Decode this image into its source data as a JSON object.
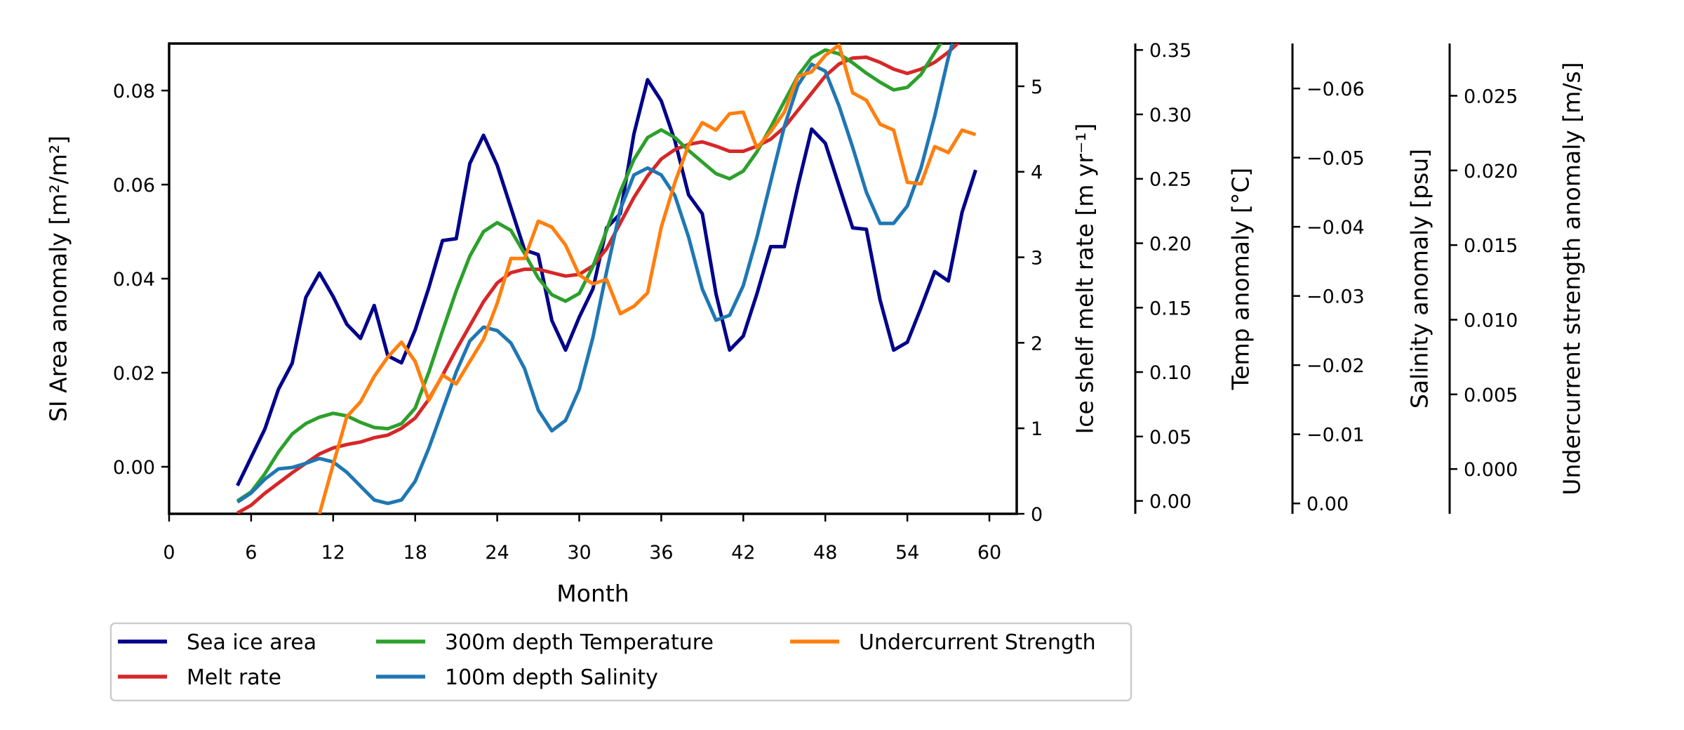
{
  "chart_data": {
    "type": "line",
    "title": "",
    "xlabel": "Month",
    "xlim": [
      0,
      62
    ],
    "xticks": [
      0,
      6,
      12,
      18,
      24,
      30,
      36,
      42,
      48,
      54,
      60
    ],
    "legend_position": "below",
    "axes": [
      {
        "id": "si",
        "side": "left",
        "label": "SI Area anomaly [m²/m²]",
        "lim": [
          -0.01,
          0.09
        ],
        "ticks": [
          0.0,
          0.02,
          0.04,
          0.06,
          0.08
        ],
        "tick_labels": [
          "0.00",
          "0.02",
          "0.04",
          "0.06",
          "0.08"
        ]
      },
      {
        "id": "melt",
        "side": "right",
        "label": "Ice shelf melt rate [m yr⁻¹]",
        "lim": [
          0,
          5.5
        ],
        "ticks": [
          0,
          1,
          2,
          3,
          4,
          5
        ],
        "tick_labels": [
          "0",
          "1",
          "2",
          "3",
          "4",
          "5"
        ]
      },
      {
        "id": "temp",
        "side": "right",
        "label": "Temp anomaly [°C]",
        "lim": [
          -0.01,
          0.355
        ],
        "ticks": [
          0.0,
          0.05,
          0.1,
          0.15,
          0.2,
          0.25,
          0.3,
          0.35
        ],
        "tick_labels": [
          "0.00",
          "0.05",
          "0.10",
          "0.15",
          "0.20",
          "0.25",
          "0.30",
          "0.35"
        ]
      },
      {
        "id": "sal",
        "side": "right",
        "label": "Salinity anomaly [psu]",
        "inverted": true,
        "lim": [
          0.0015,
          -0.0665
        ],
        "ticks": [
          0.0,
          -0.01,
          -0.02,
          -0.03,
          -0.04,
          -0.05,
          -0.06
        ],
        "tick_labels": [
          "0.00",
          "−0.01",
          "−0.02",
          "−0.03",
          "−0.04",
          "−0.05",
          "−0.06"
        ]
      },
      {
        "id": "uc",
        "side": "right",
        "label": "Undercurrent strength anomaly [m/s]",
        "lim": [
          -0.003,
          0.0285
        ],
        "ticks": [
          0.0,
          0.005,
          0.01,
          0.015,
          0.02,
          0.025
        ],
        "tick_labels": [
          "0.000",
          "0.005",
          "0.010",
          "0.015",
          "0.020",
          "0.025"
        ]
      }
    ],
    "series": [
      {
        "name": "Sea ice area",
        "axis": "si",
        "color": "#00008b",
        "x": [
          5,
          6,
          7,
          8,
          9,
          10,
          11,
          12,
          13,
          14,
          15,
          16,
          17,
          18,
          19,
          20,
          21,
          22,
          23,
          24,
          25,
          26,
          27,
          28,
          29,
          30,
          31,
          32,
          33,
          34,
          35,
          36,
          37,
          38,
          39,
          40,
          41,
          42,
          43,
          44,
          45,
          46,
          47,
          48,
          49,
          50,
          51,
          52,
          53,
          54,
          55,
          56,
          57,
          58,
          59
        ],
        "values": [
          -0.004,
          0.002,
          0.008,
          0.0165,
          0.022,
          0.036,
          0.0412,
          0.0362,
          0.0303,
          0.0273,
          0.0343,
          0.0236,
          0.0221,
          0.0291,
          0.0381,
          0.0481,
          0.0485,
          0.0645,
          0.0705,
          0.0641,
          0.0551,
          0.0461,
          0.0451,
          0.0311,
          0.0248,
          0.0318,
          0.0378,
          0.0508,
          0.0538,
          0.0708,
          0.0823,
          0.0778,
          0.0693,
          0.0578,
          0.0538,
          0.0368,
          0.0248,
          0.0278,
          0.0368,
          0.0468,
          0.0468,
          0.0598,
          0.0718,
          0.0688,
          0.0598,
          0.0508,
          0.0505,
          0.0355,
          0.0248,
          0.0265,
          0.0338,
          0.0415,
          0.0395,
          0.0541,
          0.0631
        ]
      },
      {
        "name": "Melt rate",
        "axis": "melt",
        "color": "#d62728",
        "x": [
          5,
          6,
          7,
          8,
          9,
          10,
          11,
          12,
          13,
          14,
          15,
          16,
          17,
          18,
          19,
          20,
          21,
          22,
          23,
          24,
          25,
          26,
          27,
          28,
          29,
          30,
          31,
          32,
          33,
          34,
          35,
          36,
          37,
          38,
          39,
          40,
          41,
          42,
          43,
          44,
          45,
          46,
          47,
          48,
          49,
          50,
          51,
          52,
          53,
          54,
          55,
          56,
          57,
          58,
          59
        ],
        "values": [
          0.01,
          0.1,
          0.24,
          0.36,
          0.48,
          0.59,
          0.7,
          0.77,
          0.81,
          0.84,
          0.89,
          0.92,
          1.0,
          1.12,
          1.34,
          1.62,
          1.92,
          2.2,
          2.48,
          2.7,
          2.82,
          2.86,
          2.86,
          2.82,
          2.78,
          2.8,
          2.9,
          3.1,
          3.4,
          3.7,
          3.95,
          4.15,
          4.26,
          4.32,
          4.35,
          4.3,
          4.24,
          4.24,
          4.3,
          4.38,
          4.52,
          4.72,
          4.92,
          5.12,
          5.26,
          5.33,
          5.34,
          5.28,
          5.2,
          5.15,
          5.2,
          5.28,
          5.4,
          5.55,
          5.73
        ]
      },
      {
        "name": "300m depth Temperature",
        "axis": "temp",
        "color": "#2ca02c",
        "x": [
          5,
          6,
          7,
          8,
          9,
          10,
          11,
          12,
          13,
          14,
          15,
          16,
          17,
          18,
          19,
          20,
          21,
          22,
          23,
          24,
          25,
          26,
          27,
          28,
          29,
          30,
          31,
          32,
          33,
          34,
          35,
          36,
          37,
          38,
          39,
          40,
          41,
          42,
          43,
          44,
          45,
          46,
          47,
          48,
          49,
          50,
          51,
          52,
          53,
          54,
          55,
          56,
          57,
          58,
          59
        ],
        "values": [
          0.0,
          0.007,
          0.021,
          0.038,
          0.052,
          0.06,
          0.065,
          0.068,
          0.066,
          0.061,
          0.057,
          0.056,
          0.06,
          0.072,
          0.1,
          0.132,
          0.163,
          0.19,
          0.209,
          0.216,
          0.21,
          0.192,
          0.173,
          0.16,
          0.155,
          0.161,
          0.182,
          0.21,
          0.24,
          0.265,
          0.282,
          0.288,
          0.282,
          0.272,
          0.263,
          0.254,
          0.25,
          0.256,
          0.271,
          0.29,
          0.31,
          0.33,
          0.344,
          0.35,
          0.347,
          0.34,
          0.332,
          0.325,
          0.319,
          0.321,
          0.331,
          0.348,
          0.364,
          0.378,
          0.39
        ]
      },
      {
        "name": "100m depth Salinity",
        "axis": "sal",
        "color": "#1f77b4",
        "x": [
          5,
          6,
          7,
          8,
          9,
          10,
          11,
          12,
          13,
          14,
          15,
          16,
          17,
          18,
          19,
          20,
          21,
          22,
          23,
          24,
          25,
          26,
          27,
          28,
          29,
          30,
          31,
          32,
          33,
          34,
          35,
          36,
          37,
          38,
          39,
          40,
          41,
          42,
          43,
          44,
          45,
          46,
          47,
          48,
          49,
          50,
          51,
          52,
          53,
          54,
          55,
          56,
          57,
          58,
          59
        ],
        "values": [
          -0.0002,
          -0.0015,
          -0.0035,
          -0.005,
          -0.0052,
          -0.0058,
          -0.0065,
          -0.006,
          -0.0045,
          -0.0025,
          -0.0005,
          0.0,
          -0.0005,
          -0.0032,
          -0.008,
          -0.0135,
          -0.019,
          -0.0235,
          -0.0255,
          -0.025,
          -0.0232,
          -0.0195,
          -0.0135,
          -0.0105,
          -0.012,
          -0.0165,
          -0.024,
          -0.0335,
          -0.0425,
          -0.0475,
          -0.0485,
          -0.0475,
          -0.0445,
          -0.0385,
          -0.031,
          -0.0265,
          -0.0272,
          -0.0315,
          -0.0385,
          -0.0465,
          -0.0545,
          -0.0605,
          -0.0635,
          -0.0625,
          -0.0575,
          -0.0515,
          -0.045,
          -0.0405,
          -0.0405,
          -0.043,
          -0.0485,
          -0.056,
          -0.0645,
          -0.0715,
          -0.0745
        ]
      },
      {
        "name": "Undercurrent Strength",
        "axis": "uc",
        "color": "#ff7f0e",
        "x": [
          11,
          12,
          13,
          14,
          15,
          16,
          17,
          18,
          19,
          20,
          21,
          22,
          23,
          24,
          25,
          26,
          27,
          28,
          29,
          30,
          31,
          32,
          33,
          34,
          35,
          36,
          37,
          38,
          39,
          40,
          41,
          42,
          43,
          44,
          45,
          46,
          47,
          48,
          49,
          50,
          51,
          52,
          53,
          54,
          55,
          56,
          57,
          58,
          59
        ],
        "values": [
          -0.003,
          0.0003,
          0.0035,
          0.0045,
          0.0062,
          0.0075,
          0.0085,
          0.0072,
          0.0046,
          0.0063,
          0.0057,
          0.0072,
          0.0087,
          0.0111,
          0.0141,
          0.0141,
          0.0166,
          0.0162,
          0.015,
          0.013,
          0.0124,
          0.0127,
          0.0104,
          0.0109,
          0.0118,
          0.0162,
          0.0192,
          0.0217,
          0.0232,
          0.0227,
          0.0238,
          0.0239,
          0.0215,
          0.0226,
          0.0239,
          0.0263,
          0.0266,
          0.0277,
          0.0284,
          0.0252,
          0.0247,
          0.0231,
          0.0227,
          0.0192,
          0.0191,
          0.0216,
          0.0212,
          0.0227,
          0.0224
        ]
      }
    ]
  }
}
